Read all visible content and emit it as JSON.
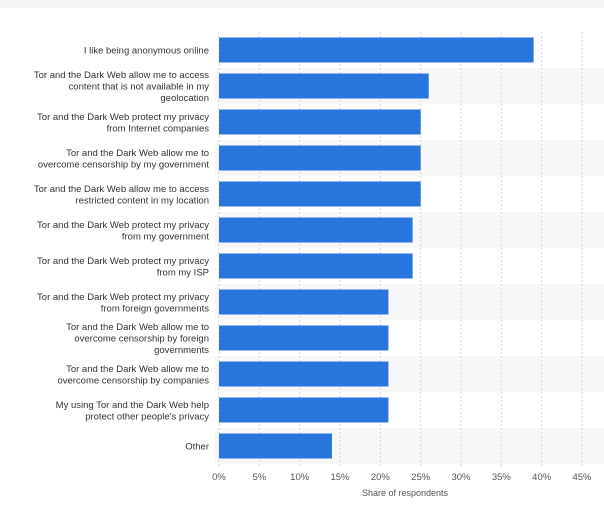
{
  "colors": {
    "bar": "#2876dd",
    "band": "#f7f7f7",
    "grid": "#d6d6d6"
  },
  "chart_data": {
    "type": "bar",
    "orientation": "horizontal",
    "title": "",
    "xlabel": "Share of respondents",
    "ylabel": "",
    "xlim": [
      0,
      45
    ],
    "grid": true,
    "x_tick_labels": [
      "0%",
      "5%",
      "10%",
      "15%",
      "20%",
      "25%",
      "30%",
      "35%",
      "40%",
      "45%"
    ],
    "categories": [
      [
        "I like being anonymous online"
      ],
      [
        "Tor and the Dark Web allow me to access",
        "content that is not available in my",
        "geolocation"
      ],
      [
        "Tor and the Dark Web protect my privacy",
        "from Internet companies"
      ],
      [
        "Tor and the Dark Web allow me to",
        "overcome censorship by my government"
      ],
      [
        "Tor and the Dark Web allow me to access",
        "restricted content in my location"
      ],
      [
        "Tor and the Dark Web protect my privacy",
        "from my government"
      ],
      [
        "Tor and the Dark Web protect my privacy",
        "from my ISP"
      ],
      [
        "Tor and the Dark Web protect my privacy",
        "from foreign governments"
      ],
      [
        "Tor and the Dark Web allow me to",
        "overcome censorship by foreign",
        "governments"
      ],
      [
        "Tor and the Dark Web allow me to",
        "overcome censorship by companies"
      ],
      [
        "My using Tor and the Dark Web help",
        "protect other people's privacy"
      ],
      [
        "Other"
      ]
    ],
    "values": [
      39,
      26,
      25,
      25,
      25,
      24,
      24,
      21,
      21,
      21,
      21,
      14
    ]
  }
}
